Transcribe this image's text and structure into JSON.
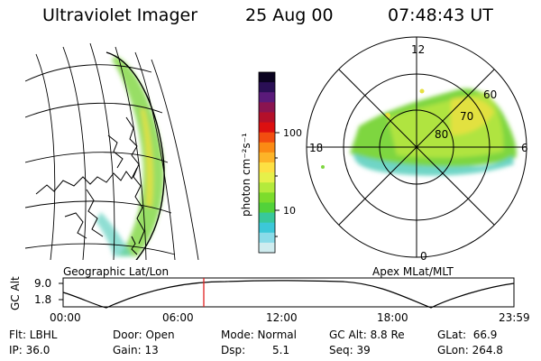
{
  "header": {
    "instrument": "Ultraviolet Imager",
    "date": "25 Aug 00",
    "time": "07:48:43 UT"
  },
  "colorbar": {
    "unit": "photon cm⁻²s⁻¹",
    "ticks": [
      "100",
      "10"
    ],
    "colors": [
      "#0b0320",
      "#2a0f55",
      "#5a1a7a",
      "#8a1450",
      "#b4102a",
      "#dc1010",
      "#f24d10",
      "#fb8a14",
      "#fdb428",
      "#fde043",
      "#e6f04a",
      "#b4ea3c",
      "#7cdc2c",
      "#52d23a",
      "#38c89a",
      "#3cc8d8",
      "#8adbe8",
      "#cfecef"
    ]
  },
  "geo_panel": {
    "label": "Geographic Lat/Lon",
    "emission_color": "#6fd23a"
  },
  "polar_panel": {
    "label": "Apex MLat/MLT",
    "mlt_labels": {
      "top": "12",
      "left": "18",
      "right": "6",
      "bottom": "0"
    },
    "mlat_labels": [
      "60",
      "70",
      "80"
    ]
  },
  "orbit": {
    "ylabel": "GC Alt",
    "yticks": [
      "9.0",
      "1.8"
    ],
    "xticks": [
      "00:00",
      "06:00",
      "12:00",
      "18:00",
      "23:59"
    ],
    "marker_time": "07:48",
    "marker_color": "#e02020"
  },
  "footer": {
    "filter": "Flt: LBHL",
    "ip": "IP: 36.0",
    "door": "Door: Open",
    "gain": "Gain: 13",
    "mode": "Mode: Normal",
    "dsp_label": "Dsp:",
    "dsp_value": "5.1",
    "gc_alt": "GC Alt: 8.8 Re",
    "seq": "Seq: 39",
    "glat": "GLat:  66.9",
    "glon": "GLon: 264.8"
  }
}
